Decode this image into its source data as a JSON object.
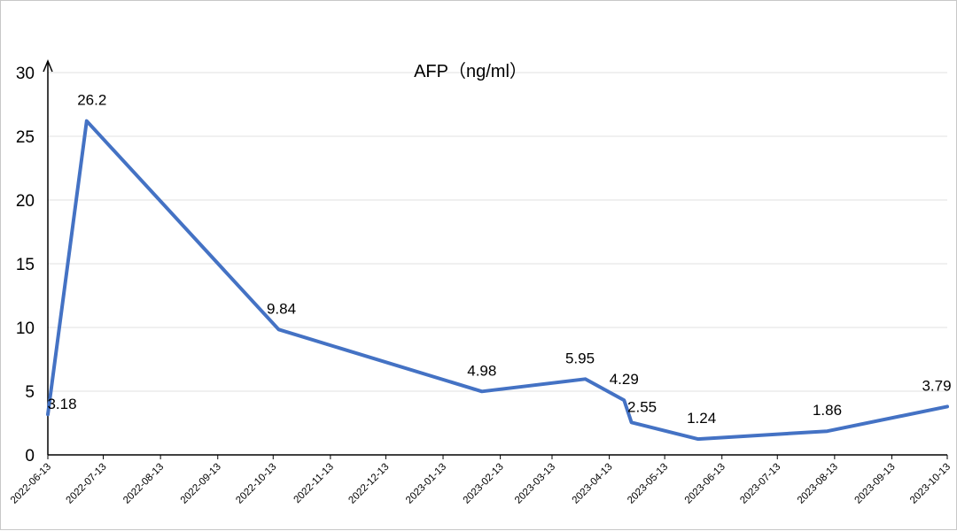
{
  "chart_data": {
    "type": "line",
    "title": "AFP（ng/ml）",
    "xlabel": "",
    "ylabel": "",
    "ylim": [
      0,
      30
    ],
    "yticks": [
      0,
      5,
      10,
      15,
      20,
      25,
      30
    ],
    "xlim": [
      "2022-06-13",
      "2023-10-13"
    ],
    "x_tick_labels": [
      "2022-06-13",
      "2022-07-13",
      "2022-08-13",
      "2022-09-13",
      "2022-10-13",
      "2022-11-13",
      "2022-12-13",
      "2023-01-13",
      "2023-02-13",
      "2023-03-13",
      "2023-04-13",
      "2023-05-13",
      "2023-06-13",
      "2023-07-13",
      "2023-08-13",
      "2023-09-13",
      "2023-10-13"
    ],
    "grid": "horizontal",
    "legend": "none",
    "line_color": "#4472C4",
    "series": [
      {
        "x": [
          "2022-06-13",
          "2022-07-04",
          "2022-10-16",
          "2023-02-03",
          "2023-03-31",
          "2023-04-21",
          "2023-04-25",
          "2023-05-31",
          "2023-08-09",
          "2023-10-13"
        ],
        "values": [
          3.18,
          26.2,
          9.84,
          4.98,
          5.95,
          4.29,
          2.55,
          1.24,
          1.86,
          3.79
        ],
        "labels": [
          "3.18",
          "26.2",
          "9.84",
          "4.98",
          "5.95",
          "4.29",
          "2.55",
          "1.24",
          "1.86",
          "3.79"
        ]
      }
    ]
  }
}
